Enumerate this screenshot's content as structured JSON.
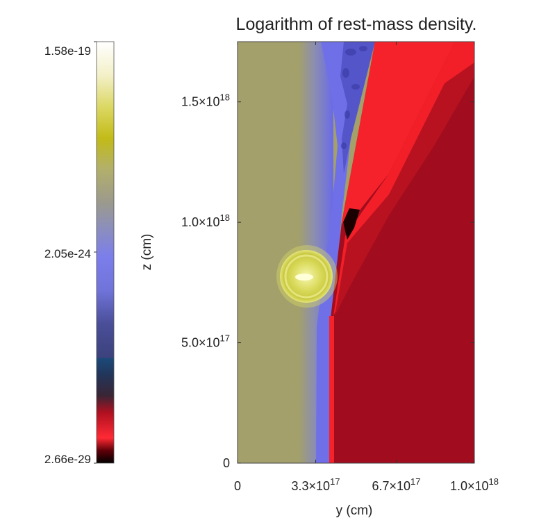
{
  "chart_data": {
    "type": "heatmap",
    "title": "Logarithm of rest-mass density.",
    "xlabel": "y (cm)",
    "ylabel": "z (cm)",
    "xlim": [
      0,
      1e+18
    ],
    "ylim": [
      0,
      1.75e+18
    ],
    "x_ticks": [
      {
        "value": 0,
        "mant": "0",
        "exp": ""
      },
      {
        "value": 3.3e+17,
        "mant": "3.3×10",
        "exp": "17"
      },
      {
        "value": 6.7e+17,
        "mant": "6.7×10",
        "exp": "17"
      },
      {
        "value": 1e+18,
        "mant": "1.0×10",
        "exp": "18"
      }
    ],
    "y_ticks": [
      {
        "value": 0,
        "mant": "0",
        "exp": ""
      },
      {
        "value": 5e+17,
        "mant": "5.0×10",
        "exp": "17"
      },
      {
        "value": 1e+18,
        "mant": "1.0×10",
        "exp": "18"
      },
      {
        "value": 1.5e+18,
        "mant": "1.5×10",
        "exp": "18"
      }
    ],
    "colorbar": {
      "scale": "log",
      "labels": [
        "1.58e-19",
        "2.05e-24",
        "2.66e-29"
      ],
      "max": "1.58e-19",
      "mid": "2.05e-24",
      "min": "2.66e-29"
    },
    "colors": {
      "ambient": "#a3a06b",
      "halo": "#8a8eae",
      "shell": "#6f6fe6",
      "jet": "#a10d1e",
      "jet_bright": "#f5222b",
      "jet_dark": "#1a0000",
      "blob": "#d8d85a",
      "blob_core": "#ffffd8"
    }
  }
}
